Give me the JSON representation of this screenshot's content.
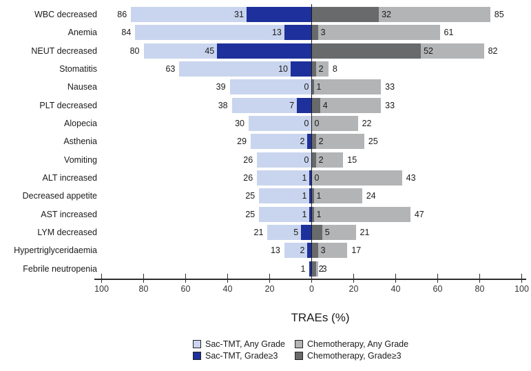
{
  "chart_data": {
    "type": "bar",
    "variant": "diverging-stacked-tornado",
    "title": "",
    "xlabel": "TRAEs (%)",
    "xlim": [
      -100,
      100
    ],
    "axis_tick_values": [
      -100,
      -80,
      -60,
      -40,
      -20,
      0,
      20,
      40,
      60,
      80,
      100
    ],
    "grid": false,
    "legend_position": "bottom",
    "colors": {
      "sac_any": "#c9d5ee",
      "sac_g3": "#1d309b",
      "chemo_any": "#b2b4b6",
      "chemo_g3": "#696a6c",
      "axis": "#2b2b2b",
      "text": "#1a1a1a"
    },
    "categories": [
      "WBC decreased",
      "Anemia",
      "NEUT decreased",
      "Stomatitis",
      "Nausea",
      "PLT decreased",
      "Alopecia",
      "Asthenia",
      "Vomiting",
      "ALT increased",
      "Decreased appetite",
      "AST increased",
      "LYM decreased",
      "Hypertriglyceridaemia",
      "Febrile neutropenia"
    ],
    "series": [
      {
        "name": "Sac-TMT, Any Grade",
        "side": "left",
        "values": [
          86,
          84,
          80,
          63,
          39,
          38,
          30,
          29,
          26,
          26,
          25,
          25,
          21,
          13,
          1
        ]
      },
      {
        "name": "Sac-TMT, Grade≥3",
        "side": "left",
        "values": [
          31,
          13,
          45,
          10,
          0,
          7,
          0,
          2,
          0,
          1,
          1,
          1,
          5,
          2,
          1
        ]
      },
      {
        "name": "Chemotherapy, Grade≥3",
        "side": "right",
        "values": [
          32,
          3,
          52,
          2,
          1,
          4,
          0,
          2,
          2,
          0,
          1,
          1,
          5,
          3,
          2
        ]
      },
      {
        "name": "Chemotherapy, Any Grade",
        "side": "right",
        "values": [
          85,
          61,
          82,
          8,
          33,
          33,
          22,
          25,
          15,
          43,
          24,
          47,
          21,
          17,
          3
        ]
      }
    ],
    "rows": [
      {
        "label": "WBC decreased",
        "sac_any": 86,
        "sac_g3": 31,
        "chemo_g3": 32,
        "chemo_any": 85,
        "lab_sac_any": "86",
        "lab_sac_g3": "31",
        "lab_chemo_g3": "32",
        "lab_chemo_any": "85"
      },
      {
        "label": "Anemia",
        "sac_any": 84,
        "sac_g3": 13,
        "chemo_g3": 3,
        "chemo_any": 61,
        "lab_sac_any": "84",
        "lab_sac_g3": "13",
        "lab_chemo_g3": "3",
        "lab_chemo_any": "61"
      },
      {
        "label": "NEUT decreased",
        "sac_any": 80,
        "sac_g3": 45,
        "chemo_g3": 52,
        "chemo_any": 82,
        "lab_sac_any": "80",
        "lab_sac_g3": "45",
        "lab_chemo_g3": "52",
        "lab_chemo_any": "82"
      },
      {
        "label": "Stomatitis",
        "sac_any": 63,
        "sac_g3": 10,
        "chemo_g3": 2,
        "chemo_any": 8,
        "lab_sac_any": "63",
        "lab_sac_g3": "10",
        "lab_chemo_g3": "2",
        "lab_chemo_any": "8"
      },
      {
        "label": "Nausea",
        "sac_any": 39,
        "sac_g3": 0,
        "chemo_g3": 1,
        "chemo_any": 33,
        "lab_sac_any": "39",
        "lab_sac_g3": "0",
        "lab_chemo_g3": "1",
        "lab_chemo_any": "33"
      },
      {
        "label": "PLT decreased",
        "sac_any": 38,
        "sac_g3": 7,
        "chemo_g3": 4,
        "chemo_any": 33,
        "lab_sac_any": "38",
        "lab_sac_g3": "7",
        "lab_chemo_g3": "4",
        "lab_chemo_any": "33"
      },
      {
        "label": "Alopecia",
        "sac_any": 30,
        "sac_g3": 0,
        "chemo_g3": 0,
        "chemo_any": 22,
        "lab_sac_any": "30",
        "lab_sac_g3": "0",
        "lab_chemo_g3": "0",
        "lab_chemo_any": "22"
      },
      {
        "label": "Asthenia",
        "sac_any": 29,
        "sac_g3": 2,
        "chemo_g3": 2,
        "chemo_any": 25,
        "lab_sac_any": "29",
        "lab_sac_g3": "2",
        "lab_chemo_g3": "2",
        "lab_chemo_any": "25"
      },
      {
        "label": "Vomiting",
        "sac_any": 26,
        "sac_g3": 0,
        "chemo_g3": 2,
        "chemo_any": 15,
        "lab_sac_any": "26",
        "lab_sac_g3": "0",
        "lab_chemo_g3": "2",
        "lab_chemo_any": "15"
      },
      {
        "label": "ALT increased",
        "sac_any": 26,
        "sac_g3": 1,
        "chemo_g3": 0,
        "chemo_any": 43,
        "lab_sac_any": "26",
        "lab_sac_g3": "1",
        "lab_chemo_g3": "0",
        "lab_chemo_any": "43"
      },
      {
        "label": "Decreased appetite",
        "sac_any": 25,
        "sac_g3": 1,
        "chemo_g3": 1,
        "chemo_any": 24,
        "lab_sac_any": "25",
        "lab_sac_g3": "1",
        "lab_chemo_g3": "1",
        "lab_chemo_any": "24"
      },
      {
        "label": "AST increased",
        "sac_any": 25,
        "sac_g3": 1,
        "chemo_g3": 1,
        "chemo_any": 47,
        "lab_sac_any": "25",
        "lab_sac_g3": "1",
        "lab_chemo_g3": "1",
        "lab_chemo_any": "47"
      },
      {
        "label": "LYM decreased",
        "sac_any": 21,
        "sac_g3": 5,
        "chemo_g3": 5,
        "chemo_any": 21,
        "lab_sac_any": "21",
        "lab_sac_g3": "5",
        "lab_chemo_g3": "5",
        "lab_chemo_any": "21"
      },
      {
        "label": "Hypertriglyceridaemia",
        "sac_any": 13,
        "sac_g3": 2,
        "chemo_g3": 3,
        "chemo_any": 17,
        "lab_sac_any": "13",
        "lab_sac_g3": "2",
        "lab_chemo_g3": "3",
        "lab_chemo_any": "17"
      },
      {
        "label": "Febrile neutropenia",
        "sac_any": 1,
        "sac_g3": 1,
        "chemo_g3": 2,
        "chemo_any": 3,
        "lab_sac_any": "1",
        "lab_sac_g3": "",
        "lab_chemo_g3": "2",
        "lab_chemo_any": "3"
      }
    ],
    "legend": [
      {
        "label": "Sac-TMT, Any Grade",
        "color_key": "sac_any"
      },
      {
        "label": "Chemotherapy, Any Grade",
        "color_key": "chemo_any"
      },
      {
        "label": "Sac-TMT, Grade≥3",
        "color_key": "sac_g3"
      },
      {
        "label": "Chemotherapy, Grade≥3",
        "color_key": "chemo_g3"
      }
    ]
  }
}
